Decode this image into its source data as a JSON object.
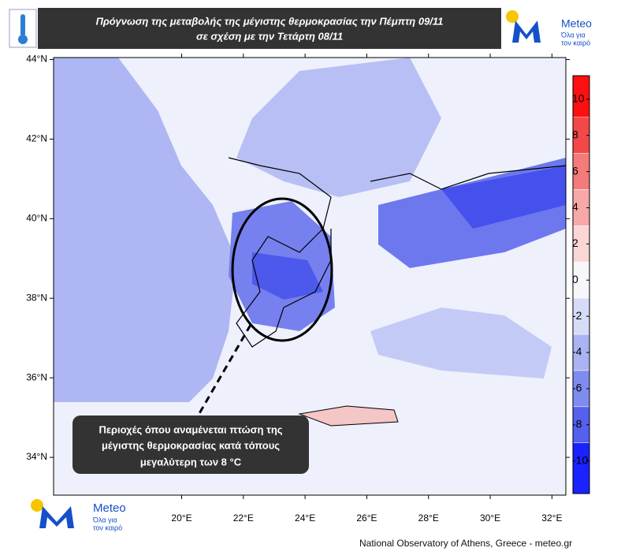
{
  "header": {
    "title_line1": "Πρόγνωση της μεταβολής της μέγιστης θερμοκρασίας την Πέμπτη 09/11",
    "title_line2": "σε σχέση με την Τετάρτη 08/11"
  },
  "logo": {
    "name": "Meteo",
    "tagline_line1": "Όλα για",
    "tagline_line2": "τον καιρό"
  },
  "map": {
    "lon_lim": [
      15.85,
      32.45
    ],
    "lat_lim": [
      44.05,
      33.05
    ],
    "lat_ticks": [
      {
        "value": 44,
        "label": "44°N"
      },
      {
        "value": 42,
        "label": "42°N"
      },
      {
        "value": 40,
        "label": "40°N"
      },
      {
        "value": 38,
        "label": "38°N"
      },
      {
        "value": 36,
        "label": "36°N"
      },
      {
        "value": 34,
        "label": "34°N"
      }
    ],
    "lon_ticks": [
      {
        "value": 20,
        "label": "20°E"
      },
      {
        "value": 22,
        "label": "22°E"
      },
      {
        "value": 24,
        "label": "24°E"
      },
      {
        "value": 26,
        "label": "26°E"
      },
      {
        "value": 28,
        "label": "28°E"
      },
      {
        "value": 30,
        "label": "30°E"
      },
      {
        "value": 32,
        "label": "32°E"
      }
    ]
  },
  "colorbar": {
    "clim": [
      -11.8,
      11.3
    ],
    "ticks": [
      10,
      8,
      6,
      4,
      2,
      0,
      -2,
      -4,
      -6,
      -8,
      -10
    ],
    "bounds": [
      11.3,
      9,
      7,
      5,
      3,
      1,
      -1,
      -3,
      -5,
      -7,
      -9,
      -11.8
    ],
    "colors": [
      "#ff1010",
      "#f34848",
      "#f57a7a",
      "#f8a8a8",
      "#fbd6d6",
      "#f6f6fb",
      "#d6dbf6",
      "#aab4f3",
      "#7f8cef",
      "#5560ef",
      "#1a22ff"
    ]
  },
  "annotation": {
    "line1": "Περιοχές όπου αναμένεται πτώση της",
    "line2": "μέγιστης θερμοκρασίας  κατά τόπους",
    "line3": "μεγαλύτερη των 8 °C"
  },
  "footer": {
    "credit": "National Observatory of Athens, Greece - meteo.gr"
  }
}
